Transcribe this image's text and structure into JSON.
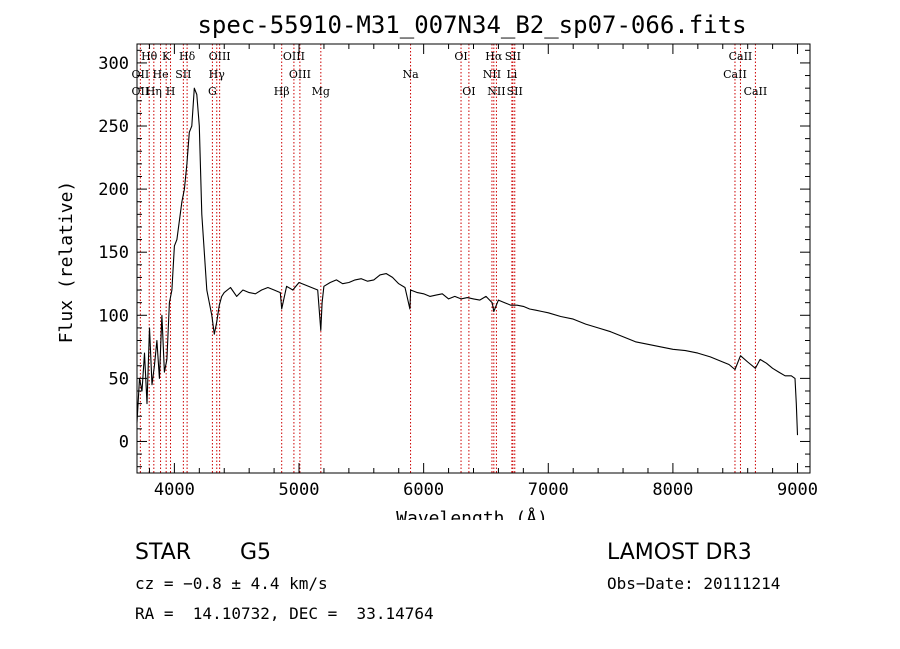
{
  "chart_data": {
    "type": "line",
    "title": "spec-55910-M31_007N34_B2_sp07-066.fits",
    "xlabel": "Wavelength (Å)",
    "ylabel": "Flux (relative)",
    "xlim": [
      3700,
      9100
    ],
    "ylim": [
      -25,
      315
    ],
    "xticks": [
      4000,
      5000,
      6000,
      7000,
      8000,
      9000
    ],
    "yticks": [
      0,
      50,
      100,
      150,
      200,
      250,
      300
    ],
    "grid": false,
    "series": [
      {
        "x": [
          3700,
          3720,
          3740,
          3760,
          3780,
          3800,
          3820,
          3840,
          3860,
          3880,
          3900,
          3920,
          3940,
          3960,
          3980,
          4000,
          4020,
          4040,
          4060,
          4080,
          4100,
          4120,
          4140,
          4160,
          4180,
          4200,
          4220,
          4240,
          4260,
          4280,
          4300,
          4320,
          4340,
          4360,
          4380,
          4400,
          4450,
          4500,
          4550,
          4600,
          4650,
          4700,
          4750,
          4800,
          4850,
          4861,
          4900,
          4950,
          5000,
          5050,
          5100,
          5150,
          5175,
          5185,
          5200,
          5250,
          5300,
          5350,
          5400,
          5450,
          5500,
          5550,
          5600,
          5650,
          5700,
          5750,
          5800,
          5850,
          5890,
          5895,
          5950,
          6000,
          6050,
          6100,
          6150,
          6200,
          6250,
          6300,
          6350,
          6400,
          6450,
          6500,
          6550,
          6563,
          6600,
          6650,
          6700,
          6750,
          6800,
          6850,
          6900,
          6950,
          7000,
          7100,
          7200,
          7300,
          7400,
          7500,
          7600,
          7700,
          7800,
          7900,
          8000,
          8100,
          8200,
          8300,
          8400,
          8450,
          8498,
          8542,
          8600,
          8662,
          8700,
          8750,
          8800,
          8850,
          8900,
          8950,
          8980,
          8990,
          9000
        ],
        "y": [
          15,
          50,
          40,
          70,
          30,
          90,
          45,
          60,
          80,
          50,
          100,
          55,
          65,
          110,
          120,
          155,
          160,
          175,
          190,
          200,
          220,
          245,
          250,
          280,
          275,
          250,
          180,
          150,
          120,
          110,
          100,
          85,
          95,
          108,
          115,
          118,
          122,
          115,
          120,
          118,
          117,
          120,
          122,
          120,
          118,
          105,
          123,
          120,
          126,
          124,
          122,
          120,
          88,
          110,
          123,
          126,
          128,
          125,
          126,
          128,
          129,
          127,
          128,
          132,
          133,
          130,
          125,
          122,
          105,
          120,
          118,
          117,
          115,
          116,
          117,
          113,
          115,
          113,
          114,
          113,
          112,
          115,
          110,
          103,
          112,
          110,
          108,
          108,
          107,
          105,
          104,
          103,
          102,
          99,
          97,
          93,
          90,
          87,
          83,
          79,
          77,
          75,
          73,
          72,
          70,
          67,
          63,
          61,
          57,
          68,
          63,
          58,
          65,
          62,
          58,
          55,
          52,
          52,
          50,
          30,
          5
        ]
      }
    ],
    "lines": [
      {
        "label": "Hθ",
        "wave": 3798,
        "row": 0
      },
      {
        "label": "OII",
        "wave": 3727,
        "row": 1
      },
      {
        "label": "OII",
        "wave": 3727,
        "row": 2
      },
      {
        "label": "Hη",
        "wave": 3835,
        "row": 2
      },
      {
        "label": "He",
        "wave": 3889,
        "row": 1
      },
      {
        "label": "K",
        "wave": 3934,
        "row": 0
      },
      {
        "label": "H",
        "wave": 3969,
        "row": 2
      },
      {
        "label": "SII",
        "wave": 4072,
        "row": 1
      },
      {
        "label": "Hδ",
        "wave": 4102,
        "row": 0
      },
      {
        "label": "OIII",
        "wave": 4363,
        "row": 0
      },
      {
        "label": "Hγ",
        "wave": 4340,
        "row": 1
      },
      {
        "label": "G",
        "wave": 4305,
        "row": 2
      },
      {
        "label": "Hβ",
        "wave": 4861,
        "row": 2
      },
      {
        "label": "OIII",
        "wave": 4959,
        "row": 0
      },
      {
        "label": "OIII",
        "wave": 5007,
        "row": 1
      },
      {
        "label": "Mg",
        "wave": 5175,
        "row": 2
      },
      {
        "label": "Na",
        "wave": 5895,
        "row": 1
      },
      {
        "label": "OI",
        "wave": 6300,
        "row": 0
      },
      {
        "label": "OI",
        "wave": 6363,
        "row": 2
      },
      {
        "label": "Hα",
        "wave": 6563,
        "row": 0
      },
      {
        "label": "SII",
        "wave": 6716,
        "row": 0
      },
      {
        "label": "NII",
        "wave": 6548,
        "row": 1
      },
      {
        "label": "Li",
        "wave": 6708,
        "row": 1
      },
      {
        "label": "NII",
        "wave": 6584,
        "row": 2
      },
      {
        "label": "SII",
        "wave": 6731,
        "row": 2
      },
      {
        "label": "CaII",
        "wave": 8542,
        "row": 0
      },
      {
        "label": "CaII",
        "wave": 8498,
        "row": 1
      },
      {
        "label": "CaII",
        "wave": 8662,
        "row": 2
      }
    ],
    "colors": {
      "spectrum": "#000000",
      "line_markers": "#cc0000"
    }
  },
  "footer": {
    "class_label": "STAR",
    "subclass": "G5",
    "survey": "LAMOST DR3",
    "cz": "cz = −0.8 ± 4.4 km/s",
    "obs_date": "Obs−Date: 20111214",
    "coords": "RA =  14.10732, DEC =  33.14764"
  }
}
